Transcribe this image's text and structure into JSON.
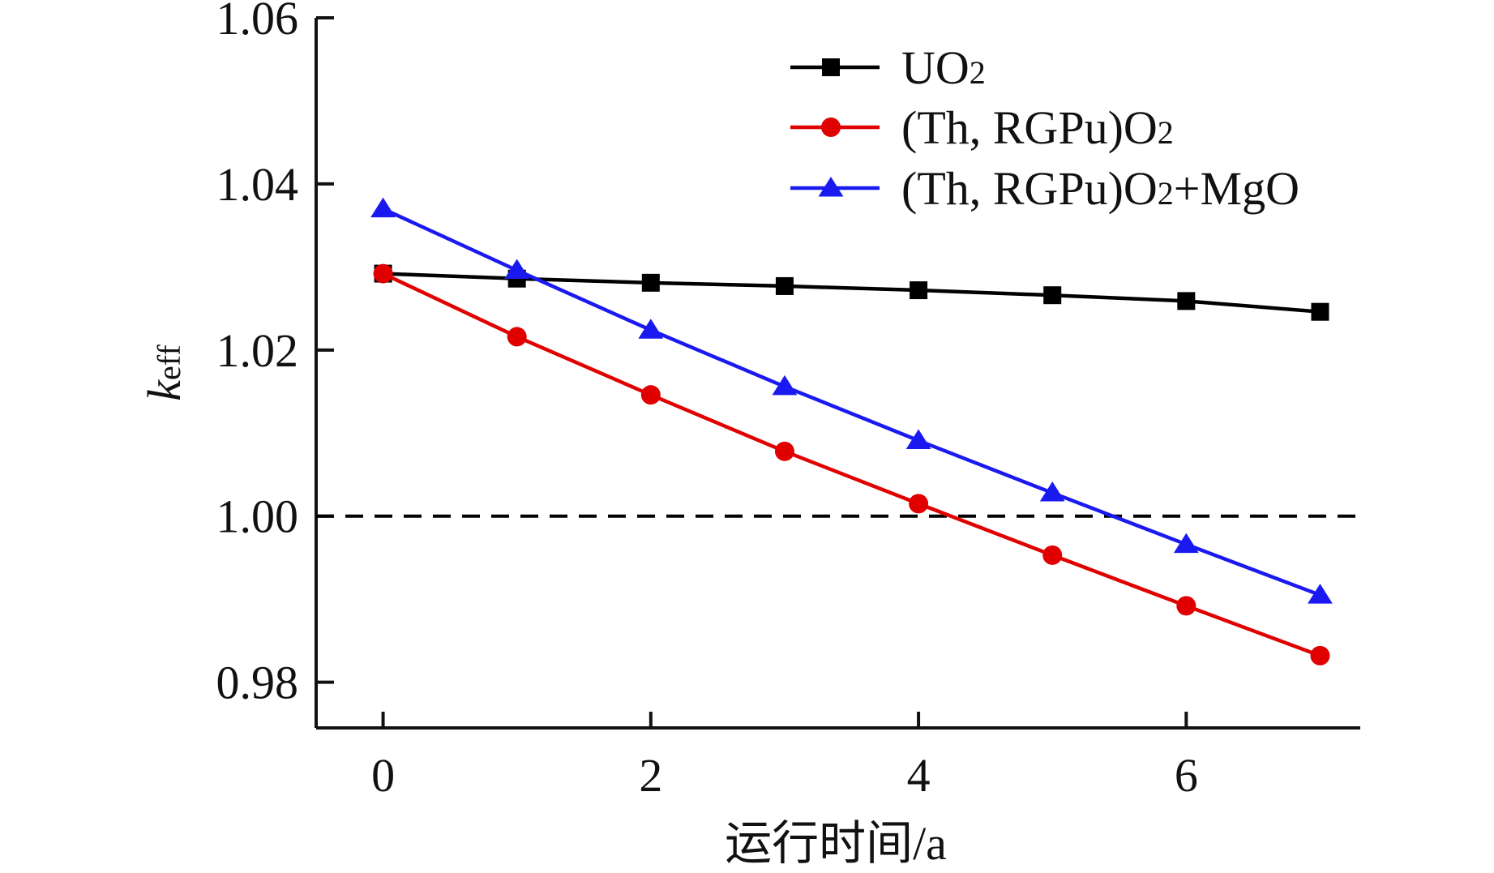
{
  "chart_data": {
    "type": "line",
    "title": "",
    "xlabel": "运行时间/a",
    "ylabel": {
      "main": "k",
      "sub": "eff"
    },
    "xlim": [
      -0.5,
      7.3
    ],
    "ylim": [
      0.9745,
      1.06
    ],
    "xticks": [
      0,
      2,
      4,
      6
    ],
    "xtick_labels": [
      "0",
      "2",
      "4",
      "6"
    ],
    "yticks": [
      0.98,
      1.0,
      1.02,
      1.04,
      1.06
    ],
    "ytick_labels": [
      "0.98",
      "1.00",
      "1.02",
      "1.04",
      "1.06"
    ],
    "x": [
      0,
      1,
      2,
      3,
      4,
      5,
      6,
      7
    ],
    "series": [
      {
        "name": "UO2",
        "legend": {
          "main": "UO",
          "sub": "2",
          "tail": ""
        },
        "color": "#000000",
        "marker": "square",
        "values": [
          1.0292,
          1.0286,
          1.0281,
          1.0277,
          1.0272,
          1.0266,
          1.0259,
          1.0246
        ]
      },
      {
        "name": "(Th, RGPu)O2",
        "legend": {
          "main": "(Th, RGPu)O",
          "sub": "2",
          "tail": ""
        },
        "color": "#e00000",
        "marker": "circle",
        "values": [
          1.0292,
          1.0216,
          1.0146,
          1.0078,
          1.0015,
          0.9953,
          0.9892,
          0.9832
        ]
      },
      {
        "name": "(Th, RGPu)O2+MgO",
        "legend": {
          "main": "(Th, RGPu)O",
          "sub": "2",
          "tail": "+MgO"
        },
        "color": "#1a1af0",
        "marker": "triangle",
        "values": [
          1.037,
          1.0296,
          1.0224,
          1.0156,
          1.0091,
          1.0028,
          0.9966,
          0.9905
        ]
      }
    ],
    "reference_line": {
      "y": 1.0,
      "style": "dashed",
      "color": "#000000"
    },
    "legend_position": "top-right",
    "grid": false
  }
}
